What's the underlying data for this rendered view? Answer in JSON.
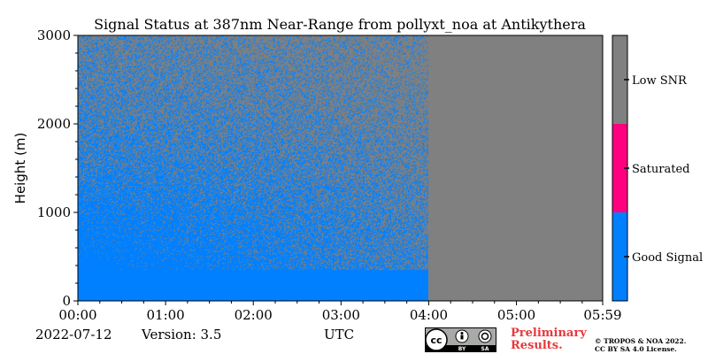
{
  "chart_data": {
    "type": "heatmap",
    "title": "Signal Status at 387nm Near-Range from pollyxt_noa at Antikythera",
    "xlabel": "UTC",
    "ylabel": "Height (m)",
    "x_range": [
      "00:00",
      "05:59"
    ],
    "x_ticks": [
      "00:00",
      "01:00",
      "02:00",
      "03:00",
      "04:00",
      "05:00",
      "05:59"
    ],
    "ylim": [
      0,
      3000
    ],
    "y_ticks": [
      0,
      1000,
      2000,
      3000
    ],
    "data_end_time": "04:00",
    "categories": [
      {
        "label": "Good Signal",
        "color": "#0080ff",
        "value_range": [
          0,
          1
        ]
      },
      {
        "label": "Saturated",
        "color": "#ff0080",
        "value_range": [
          1,
          2
        ]
      },
      {
        "label": "Low SNR",
        "color": "#808080",
        "value_range": [
          2,
          3
        ]
      }
    ],
    "good_signal_fraction_profile": [
      {
        "height": 0,
        "fraction": 1.0
      },
      {
        "height": 400,
        "fraction": 1.0
      },
      {
        "height": 900,
        "fraction": 0.9
      },
      {
        "height": 1500,
        "fraction": 0.65
      },
      {
        "height": 2200,
        "fraction": 0.45
      },
      {
        "height": 3000,
        "fraction": 0.3
      }
    ]
  },
  "footer": {
    "date": "2022-07-12",
    "version": "Version: 3.5",
    "utc": "UTC",
    "cc_icon": "cc-by-sa-icon",
    "cc_text_by": "BY",
    "cc_text_sa": "SA",
    "cc_text_cc": "cc",
    "preliminary_line1": "Preliminary",
    "preliminary_line2": "Results.",
    "license_line1": "© TROPOS & NOA 2022.",
    "license_line2": "CC BY SA 4.0 License."
  }
}
